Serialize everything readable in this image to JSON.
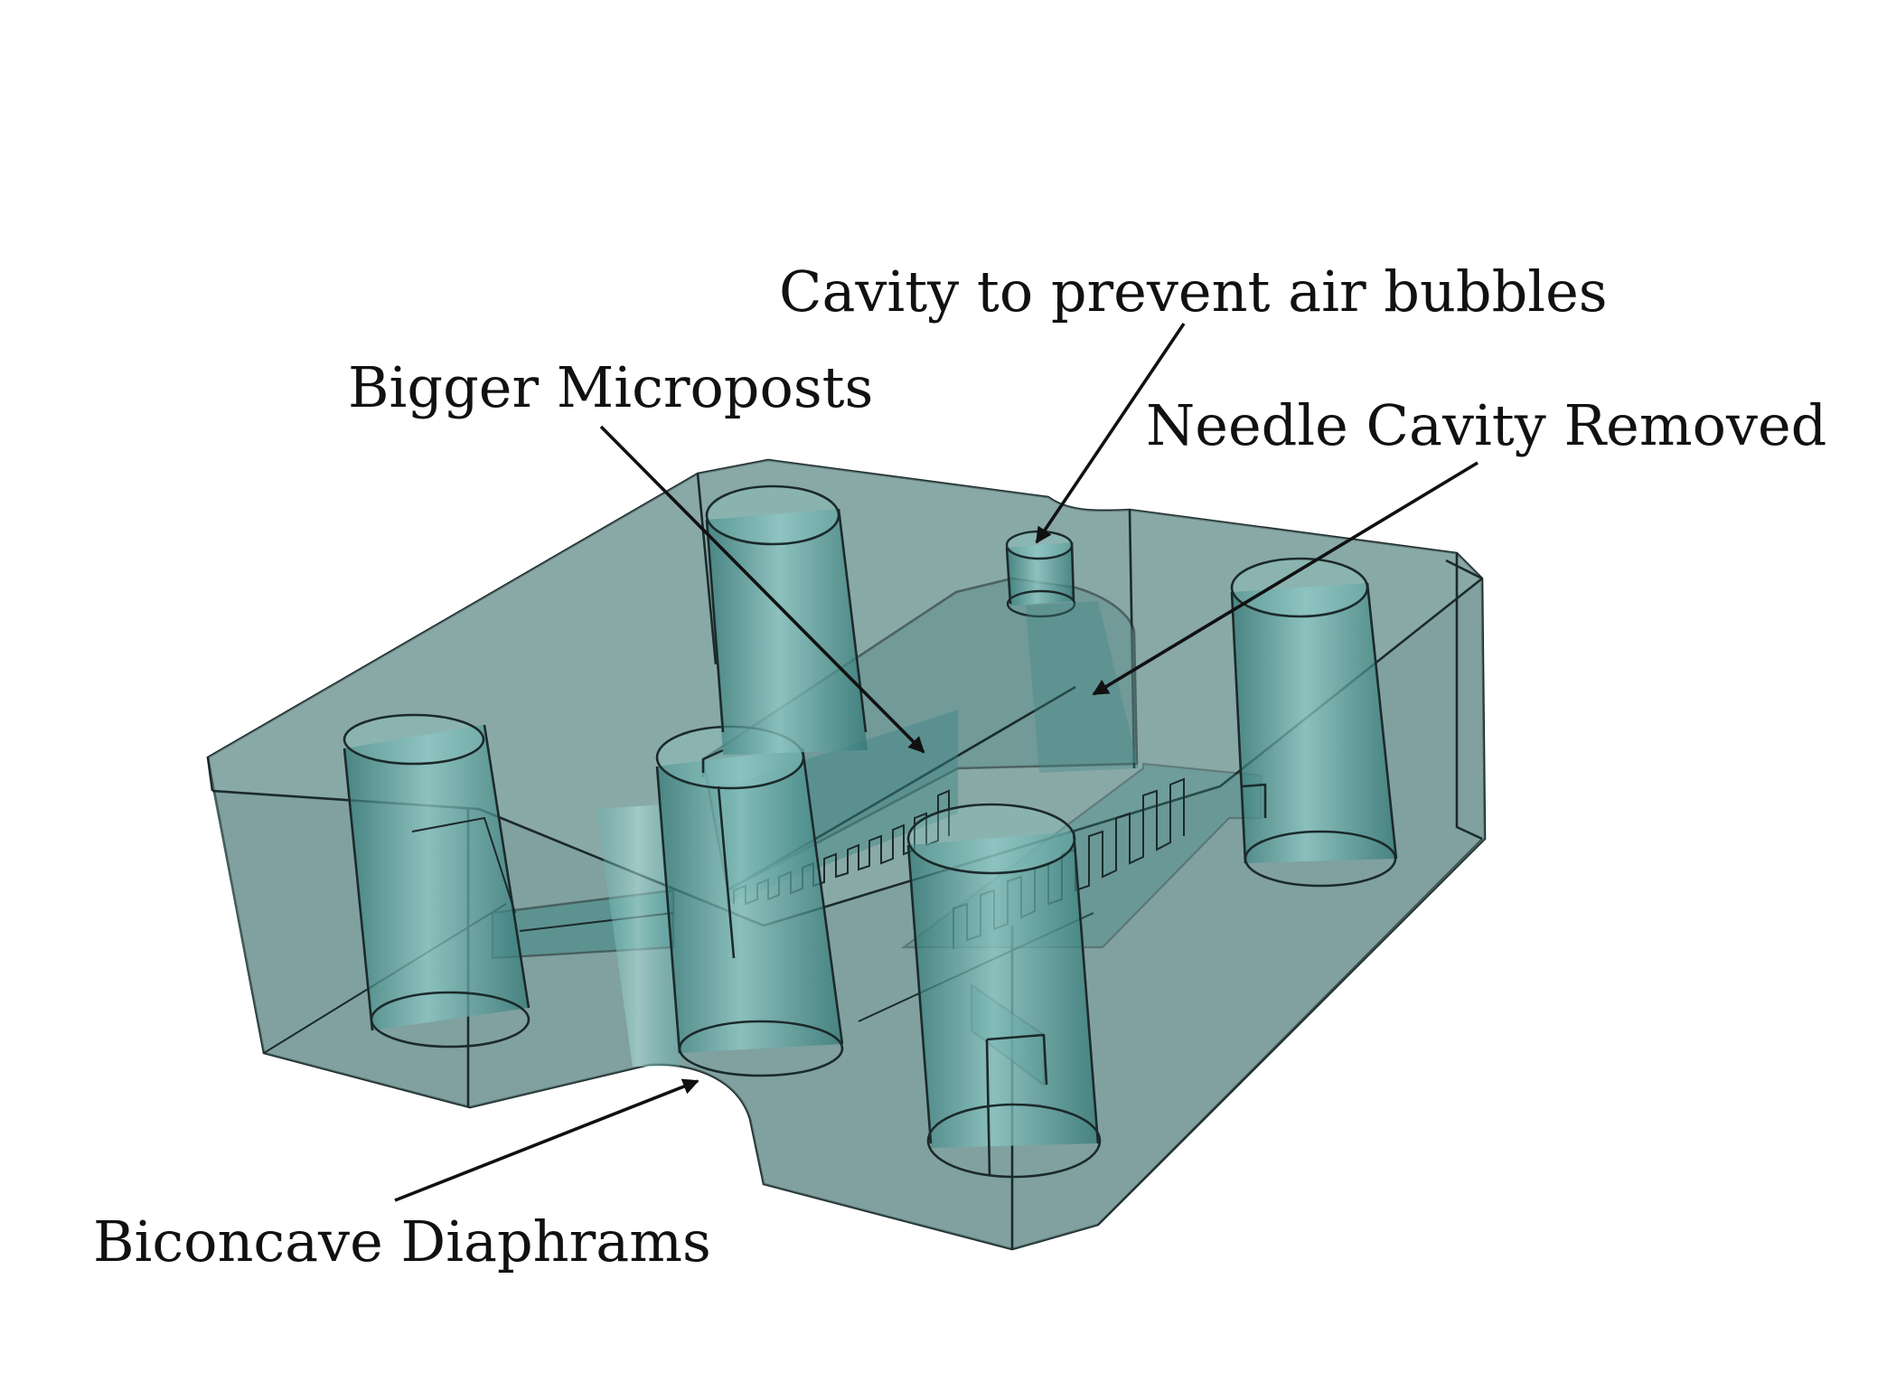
{
  "annotations": {
    "cavity": "Cavity to prevent air bubbles",
    "microposts": "Bigger Microposts",
    "needle": "Needle Cavity Removed",
    "biconcave": "Biconcave Diaphrams"
  },
  "colors": {
    "body_fill": "#86a6a5",
    "body_dark": "#5f8f8e",
    "cylinder_fill": "#3f8886",
    "cylinder_highlight": "#8fc9c6",
    "edge": "#1b2a2a"
  }
}
